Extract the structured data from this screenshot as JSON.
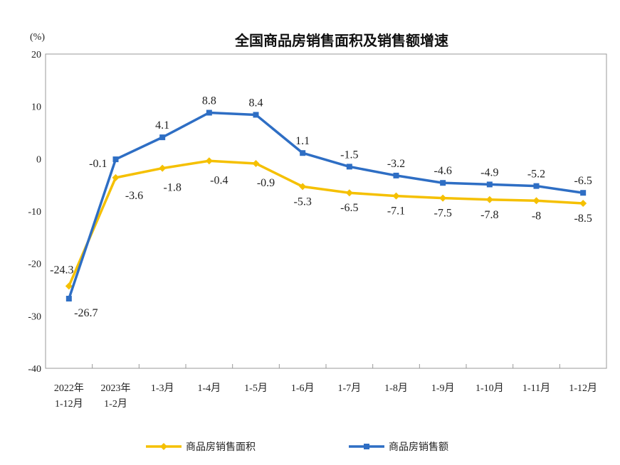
{
  "chart_data": {
    "type": "line",
    "title": "全国商品房销售面积及销售额增速",
    "ylabel": "(%)",
    "xlabel": "",
    "ylim": [
      -40,
      20
    ],
    "yticks": [
      20,
      10,
      0,
      -10,
      -20,
      -30,
      -40
    ],
    "grid": false,
    "legend_placement": "bottom-center",
    "categories": [
      [
        "2022年",
        "1-12月"
      ],
      [
        "2023年",
        "1-2月"
      ],
      [
        "1-3月"
      ],
      [
        "1-4月"
      ],
      [
        "1-5月"
      ],
      [
        "1-6月"
      ],
      [
        "1-7月"
      ],
      [
        "1-8月"
      ],
      [
        "1-9月"
      ],
      [
        "1-10月"
      ],
      [
        "1-11月"
      ],
      [
        "1-12月"
      ]
    ],
    "series": [
      {
        "name": "商品房销售面积",
        "color": "#F5C000",
        "marker": "diamond",
        "values": [
          -24.3,
          -3.6,
          -1.8,
          -0.4,
          -0.9,
          -5.3,
          -6.5,
          -7.1,
          -7.5,
          -7.8,
          -8.0,
          -8.5
        ]
      },
      {
        "name": "商品房销售额",
        "color": "#2E6EC4",
        "marker": "square",
        "values": [
          -26.7,
          -0.1,
          4.1,
          8.8,
          8.4,
          1.1,
          -1.5,
          -3.2,
          -4.6,
          -4.9,
          -5.2,
          -6.5
        ]
      }
    ]
  }
}
